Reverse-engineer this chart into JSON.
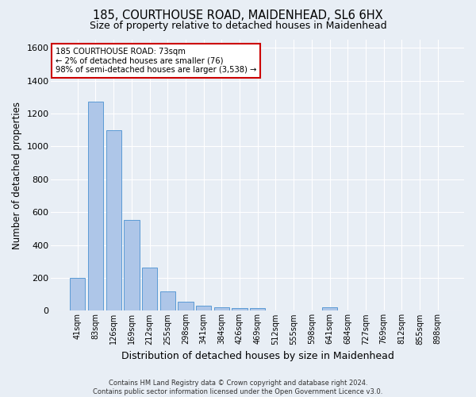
{
  "title": "185, COURTHOUSE ROAD, MAIDENHEAD, SL6 6HX",
  "subtitle": "Size of property relative to detached houses in Maidenhead",
  "xlabel": "Distribution of detached houses by size in Maidenhead",
  "ylabel": "Number of detached properties",
  "categories": [
    "41sqm",
    "83sqm",
    "126sqm",
    "169sqm",
    "212sqm",
    "255sqm",
    "298sqm",
    "341sqm",
    "384sqm",
    "426sqm",
    "469sqm",
    "512sqm",
    "555sqm",
    "598sqm",
    "641sqm",
    "684sqm",
    "727sqm",
    "769sqm",
    "812sqm",
    "855sqm",
    "898sqm"
  ],
  "values": [
    200,
    1275,
    1100,
    555,
    265,
    120,
    55,
    30,
    20,
    15,
    15,
    0,
    0,
    0,
    20,
    0,
    0,
    0,
    0,
    0,
    0
  ],
  "bar_color": "#aec6e8",
  "bar_edge_color": "#5b9bd5",
  "annotation_line1": "185 COURTHOUSE ROAD: 73sqm",
  "annotation_line2": "← 2% of detached houses are smaller (76)",
  "annotation_line3": "98% of semi-detached houses are larger (3,538) →",
  "annotation_box_color": "#ffffff",
  "annotation_box_edge_color": "#cc0000",
  "ylim": [
    0,
    1650
  ],
  "yticks": [
    0,
    200,
    400,
    600,
    800,
    1000,
    1200,
    1400,
    1600
  ],
  "bg_color": "#e8eef5",
  "grid_color": "#ffffff",
  "footer_line1": "Contains HM Land Registry data © Crown copyright and database right 2024.",
  "footer_line2": "Contains public sector information licensed under the Open Government Licence v3.0."
}
